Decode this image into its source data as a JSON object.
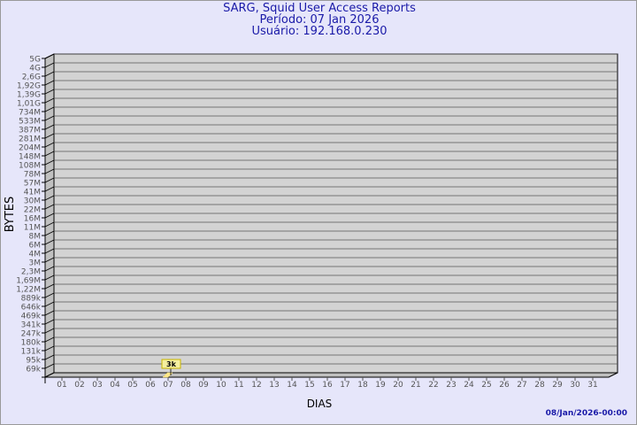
{
  "header": {
    "title": "SARG, Squid User Access Reports",
    "period": "Período: 07 Jan 2026",
    "user": "Usuário: 192.168.0.230"
  },
  "footer": {
    "timestamp": "08/Jan/2026-00:00"
  },
  "chart_data": {
    "type": "bar",
    "title": "SARG, Squid User Access Reports",
    "xlabel": "DIAS",
    "ylabel": "BYTES",
    "y_scale": "log",
    "grid": true,
    "y_tick_labels": [
      "5G",
      "4G",
      "2,6G",
      "1,92G",
      "1,39G",
      "1,01G",
      "734M",
      "533M",
      "387M",
      "281M",
      "204M",
      "148M",
      "108M",
      "78M",
      "57M",
      "41M",
      "30M",
      "22M",
      "16M",
      "11M",
      "8M",
      "6M",
      "4M",
      "3M",
      "2,3M",
      "1,69M",
      "1,22M",
      "889k",
      "646k",
      "469k",
      "341k",
      "247k",
      "180k",
      "131k",
      "95k",
      "69k"
    ],
    "categories": [
      "01",
      "02",
      "03",
      "04",
      "05",
      "06",
      "07",
      "08",
      "09",
      "10",
      "11",
      "12",
      "13",
      "14",
      "15",
      "16",
      "17",
      "18",
      "19",
      "20",
      "21",
      "22",
      "23",
      "24",
      "25",
      "26",
      "27",
      "28",
      "29",
      "30",
      "31"
    ],
    "series": [
      {
        "points": [
          {
            "x": "07",
            "value": 3000,
            "label": "3k"
          }
        ]
      }
    ],
    "colors": {
      "background": "#e6e6fa",
      "plot": "#d3d3d3",
      "side": "#c0c0c0",
      "label_box": "#f5f0a0",
      "bar": "#ffe88a"
    }
  }
}
